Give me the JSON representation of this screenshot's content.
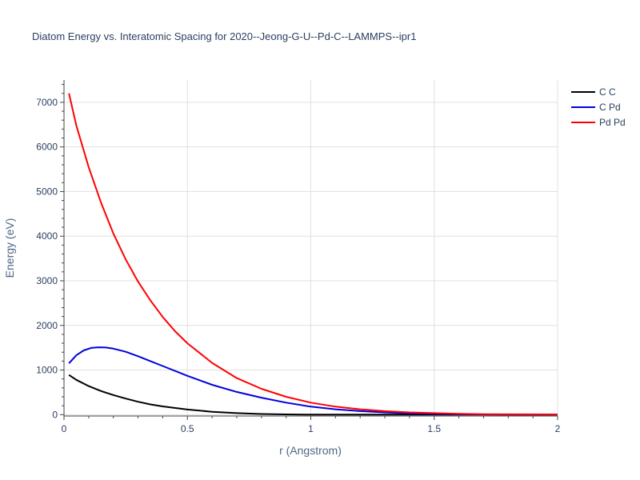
{
  "chart_data": {
    "type": "line",
    "title": "Diatom Energy vs. Interatomic Spacing for 2020--Jeong-G-U--Pd-C--LAMMPS--ipr1",
    "xlabel": "r (Angstrom)",
    "ylabel": "Energy (eV)",
    "xlim": [
      0,
      2
    ],
    "ylim": [
      -30,
      7500
    ],
    "xticks": [
      0,
      0.5,
      1,
      1.5,
      2
    ],
    "xtick_labels": [
      "0",
      "0.5",
      "1",
      "1.5",
      "2"
    ],
    "yticks": [
      0,
      1000,
      2000,
      3000,
      4000,
      5000,
      6000,
      7000
    ],
    "ytick_labels": [
      "0",
      "1000",
      "2000",
      "3000",
      "4000",
      "5000",
      "6000",
      "7000"
    ],
    "grid": true,
    "legend_position": "top-right",
    "series": [
      {
        "name": "C C",
        "color": "#000000",
        "x": [
          0.02,
          0.05,
          0.1,
          0.15,
          0.2,
          0.25,
          0.3,
          0.35,
          0.4,
          0.5,
          0.6,
          0.7,
          0.8,
          0.9,
          1.0,
          1.2,
          1.5,
          2.0
        ],
        "y": [
          890,
          780,
          640,
          530,
          440,
          360,
          290,
          230,
          185,
          115,
          65,
          35,
          15,
          5,
          0,
          0,
          0,
          0
        ]
      },
      {
        "name": "C Pd",
        "color": "#0000dd",
        "x": [
          0.02,
          0.05,
          0.08,
          0.11,
          0.14,
          0.17,
          0.2,
          0.25,
          0.3,
          0.35,
          0.4,
          0.5,
          0.6,
          0.7,
          0.8,
          0.9,
          1.0,
          1.1,
          1.2,
          1.3,
          1.4,
          1.5,
          1.6,
          1.7,
          1.8,
          2.0
        ],
        "y": [
          1150,
          1330,
          1440,
          1495,
          1510,
          1505,
          1480,
          1410,
          1310,
          1200,
          1090,
          870,
          670,
          510,
          380,
          270,
          180,
          120,
          80,
          50,
          30,
          18,
          10,
          5,
          2,
          0
        ]
      },
      {
        "name": "Pd Pd",
        "color": "#ff0000",
        "x": [
          0.02,
          0.05,
          0.1,
          0.15,
          0.2,
          0.25,
          0.3,
          0.35,
          0.4,
          0.45,
          0.5,
          0.6,
          0.7,
          0.8,
          0.9,
          1.0,
          1.1,
          1.2,
          1.3,
          1.4,
          1.5,
          1.6,
          1.7,
          1.8,
          2.0
        ],
        "y": [
          7200,
          6480,
          5550,
          4750,
          4060,
          3480,
          2980,
          2560,
          2190,
          1870,
          1600,
          1160,
          820,
          580,
          400,
          270,
          180,
          120,
          80,
          50,
          35,
          20,
          12,
          8,
          5
        ]
      }
    ]
  }
}
